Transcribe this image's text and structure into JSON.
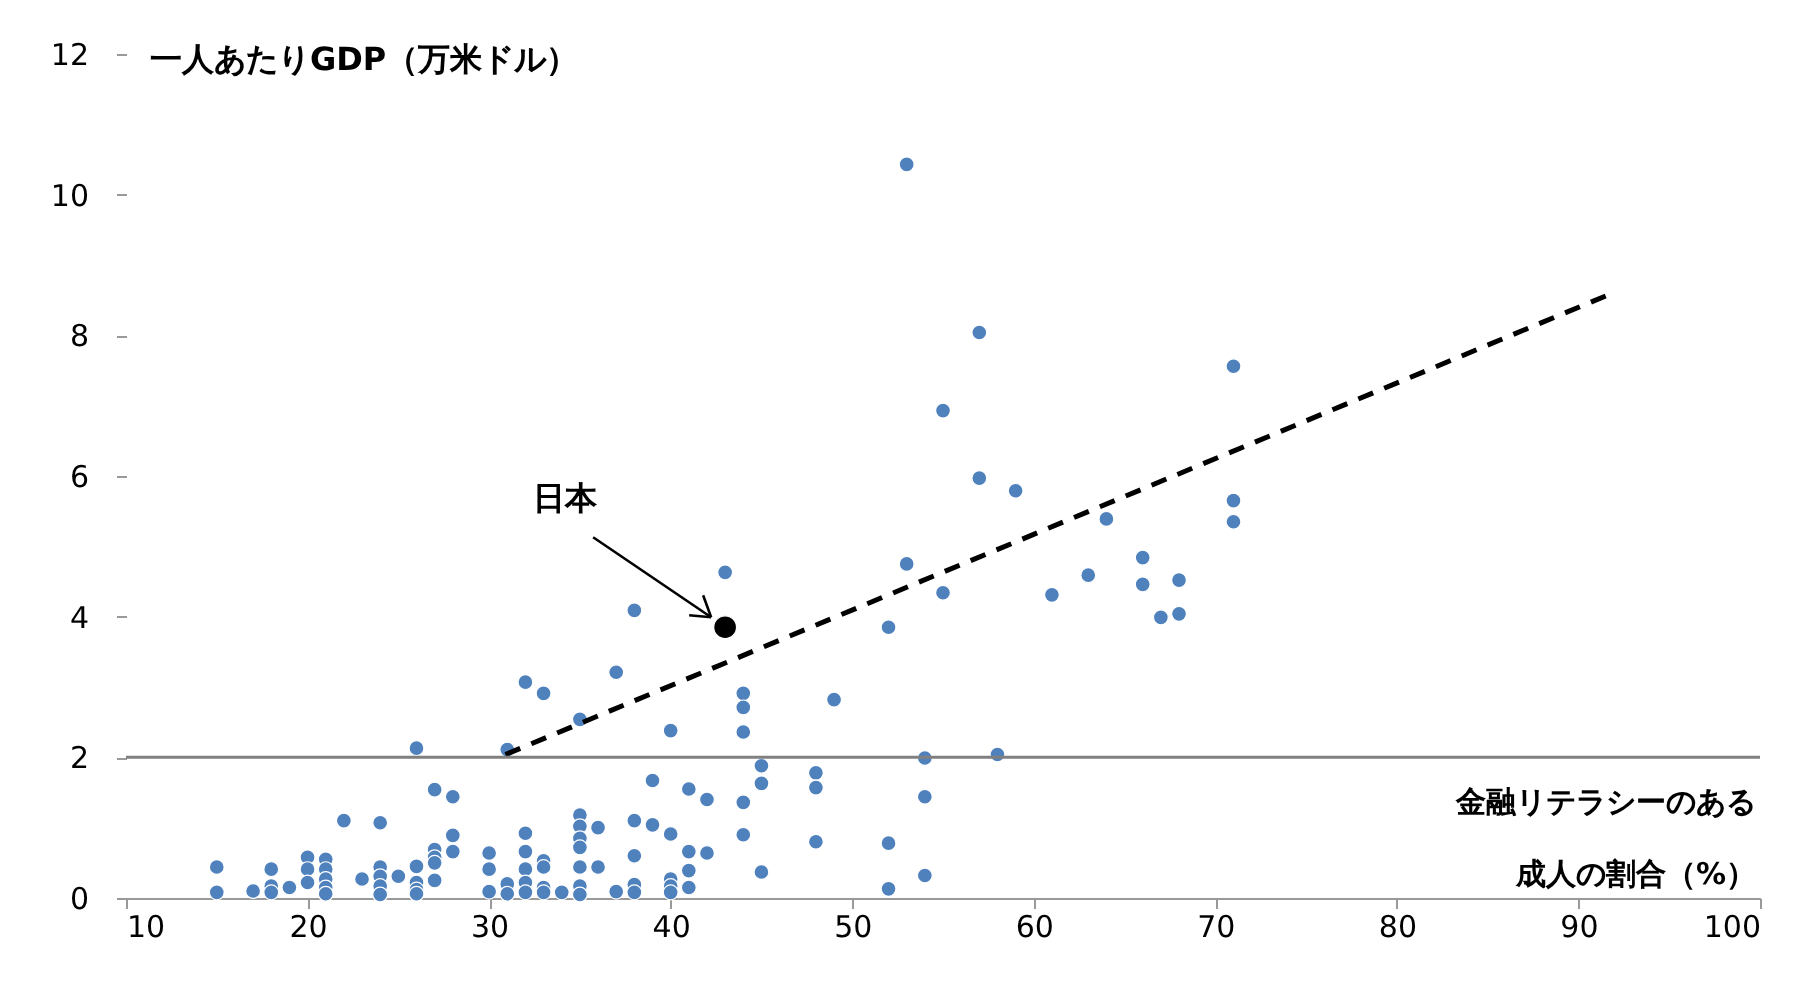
{
  "chart_data": {
    "type": "scatter",
    "xlabel": "金融リテラシーのある成人の割合（%）",
    "ylabel": "一人あたりGDP（万米ドル）",
    "xlim": [
      10,
      100
    ],
    "xticks": [
      10,
      20,
      30,
      40,
      50,
      60,
      70,
      80,
      90,
      100
    ],
    "ylim": [
      0,
      12
    ],
    "yticks": [
      0,
      2,
      4,
      6,
      8,
      10,
      12
    ],
    "marker": "circle",
    "series": [
      {
        "color": "#4f81bd",
        "x": [
          15,
          15,
          17,
          18,
          18,
          18,
          19,
          20,
          20,
          20,
          21,
          21,
          21,
          21,
          21,
          22,
          23,
          24,
          24,
          24,
          24,
          24,
          25,
          26,
          26,
          26,
          26,
          26,
          27,
          27,
          27,
          27,
          27,
          28,
          28,
          28,
          30,
          30,
          30,
          31,
          31,
          31,
          32,
          32,
          32,
          32,
          32,
          32,
          33,
          33,
          33,
          33,
          33,
          34,
          35,
          35,
          35,
          35,
          35,
          35,
          35,
          35,
          36,
          36,
          37,
          37,
          38,
          38,
          38,
          38,
          38,
          39,
          39,
          40,
          40,
          40,
          40,
          40,
          41,
          41,
          41,
          41,
          42,
          42,
          43,
          44,
          44,
          44,
          44,
          44,
          45,
          45,
          45,
          48,
          48,
          48,
          49,
          52,
          52,
          52,
          53,
          53,
          54,
          54,
          54,
          55,
          55,
          57,
          57,
          58,
          59,
          61,
          63,
          64,
          66,
          66,
          67,
          68,
          68,
          71,
          71,
          71
        ],
        "values": [
          0.44,
          0.08,
          0.1,
          0.41,
          0.17,
          0.08,
          0.15,
          0.58,
          0.41,
          0.22,
          0.55,
          0.41,
          0.27,
          0.15,
          0.06,
          1.1,
          0.27,
          1.07,
          0.44,
          0.31,
          0.17,
          0.05,
          0.31,
          2.13,
          0.45,
          0.22,
          0.12,
          0.06,
          1.54,
          0.69,
          0.58,
          0.5,
          0.25,
          1.44,
          0.89,
          0.66,
          0.64,
          0.41,
          0.09,
          2.11,
          0.2,
          0.06,
          3.07,
          0.92,
          0.66,
          0.41,
          0.22,
          0.08,
          2.91,
          0.53,
          0.44,
          0.15,
          0.08,
          0.08,
          2.54,
          1.18,
          1.02,
          0.85,
          0.72,
          0.44,
          0.17,
          0.05,
          1.0,
          0.44,
          3.21,
          0.09,
          4.09,
          1.1,
          0.6,
          0.19,
          0.08,
          1.67,
          1.04,
          2.38,
          0.91,
          0.27,
          0.17,
          0.08,
          1.55,
          0.66,
          0.39,
          0.15,
          1.4,
          0.64,
          4.63,
          2.91,
          2.71,
          2.36,
          1.36,
          0.9,
          1.88,
          1.63,
          0.37,
          1.78,
          1.57,
          0.8,
          2.82,
          3.85,
          0.78,
          0.13,
          10.43,
          4.75,
          1.99,
          1.44,
          0.32,
          6.93,
          4.34,
          8.04,
          5.97,
          2.04,
          5.79,
          4.31,
          4.59,
          5.39,
          4.84,
          4.46,
          3.99,
          4.52,
          4.04,
          7.56,
          5.65,
          5.35
        ]
      },
      {
        "name": "日本",
        "color": "#000000",
        "x": [
          43
        ],
        "values": [
          3.85
        ]
      },
      {
        "type": "line",
        "color": "#000000",
        "line_style": "dashed",
        "marker": "none",
        "x": [
          30.9,
          91.5
        ],
        "values": [
          2.04,
          8.56
        ]
      }
    ],
    "ref_lines": [
      {
        "axis": "y",
        "value": 2,
        "color": "#808080",
        "line_style": "solid"
      }
    ]
  }
}
